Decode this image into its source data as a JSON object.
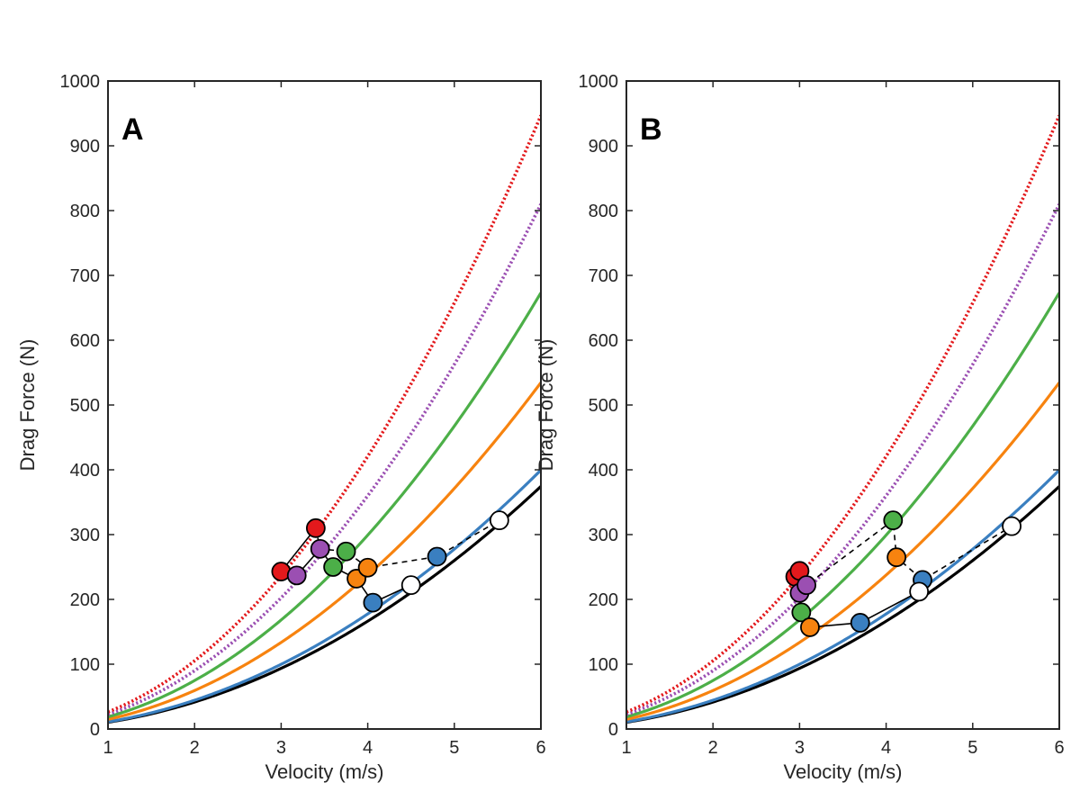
{
  "colors": {
    "black": "#000000",
    "blue": "#3a7fc0",
    "orange": "#f7830f",
    "green": "#4caf48",
    "purple": "#9b4fb2",
    "red": "#e3191c",
    "white": "#ffffff"
  },
  "chart_data": [
    {
      "type": "line",
      "panel_letter": "A",
      "xlabel": "Velocity (m/s)",
      "ylabel": "Drag Force (N)",
      "xlim": [
        1,
        6
      ],
      "ylim": [
        0,
        1000
      ],
      "xticks": [
        1,
        2,
        3,
        4,
        5,
        6
      ],
      "yticks": [
        0,
        100,
        200,
        300,
        400,
        500,
        600,
        700,
        800,
        900,
        1000
      ],
      "grid": false,
      "curves": [
        {
          "color": "black",
          "style": "solid",
          "coefficient": 10.4,
          "exponent": 2
        },
        {
          "color": "blue",
          "style": "solid",
          "coefficient": 11.1,
          "exponent": 2
        },
        {
          "color": "orange",
          "style": "solid",
          "coefficient": 14.85,
          "exponent": 2
        },
        {
          "color": "green",
          "style": "solid",
          "coefficient": 18.7,
          "exponent": 2
        },
        {
          "color": "purple",
          "style": "dotted",
          "coefficient": 22.5,
          "exponent": 2
        },
        {
          "color": "red",
          "style": "dotted",
          "coefficient": 26.3,
          "exponent": 2
        }
      ],
      "points": [
        {
          "color": "red",
          "x": 3.0,
          "y": 243
        },
        {
          "color": "red",
          "x": 3.4,
          "y": 310
        },
        {
          "color": "purple",
          "x": 3.18,
          "y": 237
        },
        {
          "color": "purple",
          "x": 3.45,
          "y": 278
        },
        {
          "color": "green",
          "x": 3.6,
          "y": 250
        },
        {
          "color": "green",
          "x": 3.75,
          "y": 274
        },
        {
          "color": "orange",
          "x": 3.87,
          "y": 232
        },
        {
          "color": "orange",
          "x": 4.0,
          "y": 249
        },
        {
          "color": "blue",
          "x": 4.06,
          "y": 195
        },
        {
          "color": "blue",
          "x": 4.8,
          "y": 266
        },
        {
          "color": "white",
          "x": 4.5,
          "y": 222
        },
        {
          "color": "white",
          "x": 5.52,
          "y": 322
        }
      ],
      "solid_path": [
        [
          3.4,
          310
        ],
        [
          3.0,
          243
        ],
        [
          3.18,
          237
        ],
        [
          3.45,
          278
        ],
        [
          3.6,
          250
        ],
        [
          3.87,
          232
        ],
        [
          4.06,
          195
        ],
        [
          4.5,
          222
        ]
      ],
      "dashed_path": [
        [
          3.4,
          310
        ],
        [
          3.45,
          278
        ],
        [
          3.75,
          274
        ],
        [
          4.0,
          249
        ],
        [
          4.8,
          266
        ],
        [
          5.52,
          322
        ]
      ]
    },
    {
      "type": "line",
      "panel_letter": "B",
      "xlabel": "Velocity (m/s)",
      "ylabel": "Drag Force (N)",
      "xlim": [
        1,
        6
      ],
      "ylim": [
        0,
        1000
      ],
      "xticks": [
        1,
        2,
        3,
        4,
        5,
        6
      ],
      "yticks": [
        0,
        100,
        200,
        300,
        400,
        500,
        600,
        700,
        800,
        900,
        1000
      ],
      "grid": false,
      "curves": [
        {
          "color": "black",
          "style": "solid",
          "coefficient": 10.4,
          "exponent": 2
        },
        {
          "color": "blue",
          "style": "solid",
          "coefficient": 11.1,
          "exponent": 2
        },
        {
          "color": "orange",
          "style": "solid",
          "coefficient": 14.85,
          "exponent": 2
        },
        {
          "color": "green",
          "style": "solid",
          "coefficient": 18.7,
          "exponent": 2
        },
        {
          "color": "purple",
          "style": "dotted",
          "coefficient": 22.5,
          "exponent": 2
        },
        {
          "color": "red",
          "style": "dotted",
          "coefficient": 26.3,
          "exponent": 2
        }
      ],
      "points": [
        {
          "color": "red",
          "x": 2.95,
          "y": 235
        },
        {
          "color": "red",
          "x": 3.0,
          "y": 244
        },
        {
          "color": "purple",
          "x": 3.0,
          "y": 210
        },
        {
          "color": "purple",
          "x": 3.08,
          "y": 222
        },
        {
          "color": "green",
          "x": 3.02,
          "y": 180
        },
        {
          "color": "green",
          "x": 4.08,
          "y": 322
        },
        {
          "color": "orange",
          "x": 3.12,
          "y": 157
        },
        {
          "color": "orange",
          "x": 4.12,
          "y": 265
        },
        {
          "color": "blue",
          "x": 3.7,
          "y": 164
        },
        {
          "color": "blue",
          "x": 4.42,
          "y": 230
        },
        {
          "color": "white",
          "x": 4.38,
          "y": 212
        },
        {
          "color": "white",
          "x": 5.45,
          "y": 313
        }
      ],
      "solid_path": [
        [
          2.95,
          235
        ],
        [
          3.0,
          210
        ],
        [
          3.02,
          180
        ],
        [
          3.12,
          157
        ],
        [
          3.7,
          164
        ],
        [
          4.38,
          212
        ]
      ],
      "dashed_path": [
        [
          3.0,
          244
        ],
        [
          3.08,
          222
        ],
        [
          4.08,
          322
        ],
        [
          4.12,
          265
        ],
        [
          4.42,
          230
        ],
        [
          5.45,
          313
        ]
      ]
    }
  ]
}
